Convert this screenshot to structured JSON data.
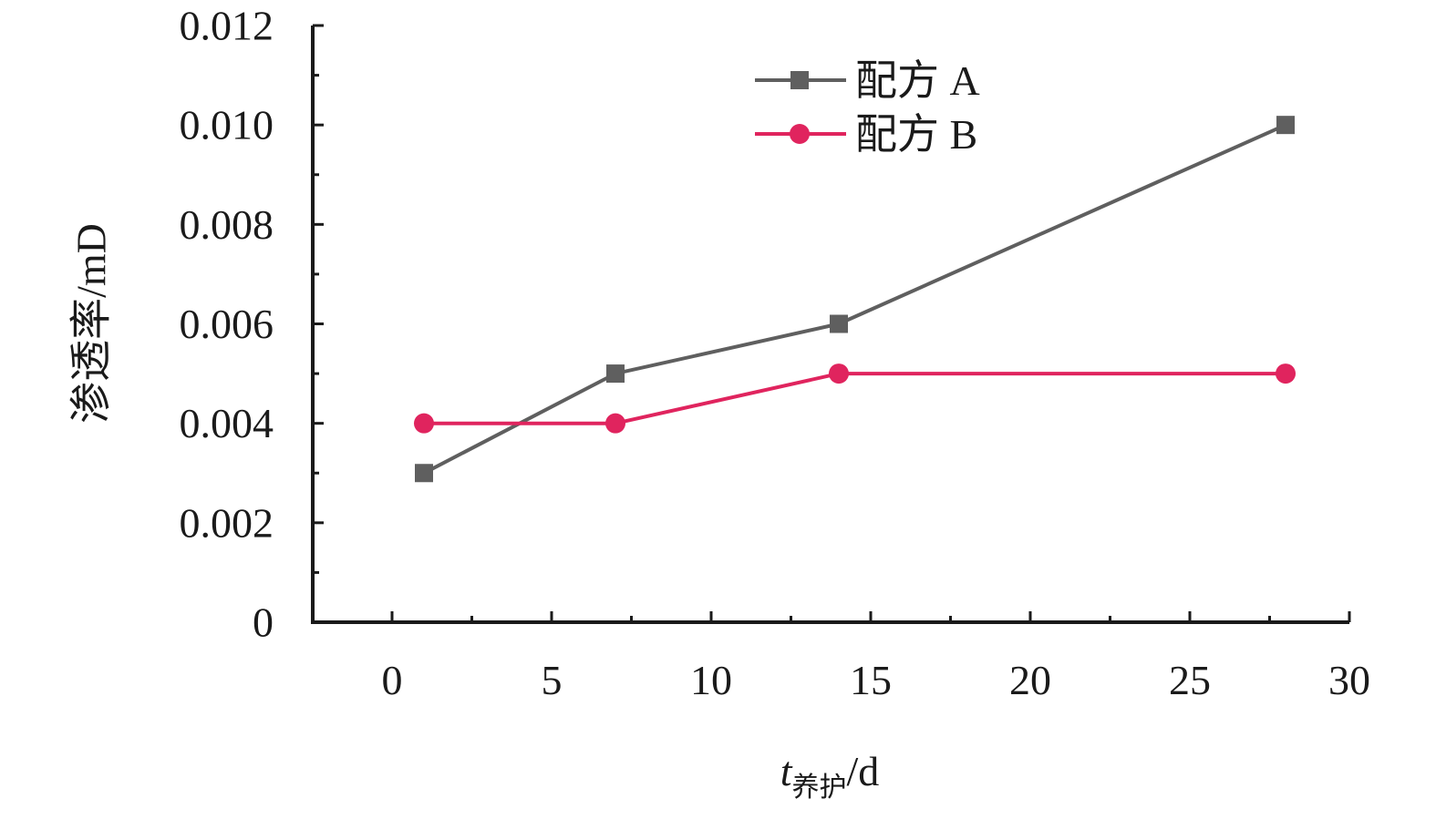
{
  "chart_data": {
    "type": "line",
    "title": "",
    "xlabel": {
      "italic": "t",
      "subscript": "养护",
      "suffix": "/d"
    },
    "ylabel": "渗透率/mD",
    "xlim": [
      0,
      30
    ],
    "ylim": [
      0,
      0.012
    ],
    "x_ticks": [
      "0",
      "5",
      "10",
      "15",
      "20",
      "25",
      "30"
    ],
    "y_ticks": [
      "0",
      "0.002",
      "0.004",
      "0.006",
      "0.008",
      "0.010",
      "0.012"
    ],
    "grid": false,
    "legend_position": "top-center",
    "series": [
      {
        "name": "配方 A",
        "color": "#5f5f5f",
        "marker": "square",
        "x": [
          1,
          7,
          14,
          28
        ],
        "values": [
          0.003,
          0.005,
          0.006,
          0.01
        ]
      },
      {
        "name": "配方 B",
        "color": "#e0245e",
        "marker": "circle",
        "x": [
          1,
          7,
          14,
          28
        ],
        "values": [
          0.004,
          0.004,
          0.005,
          0.005
        ]
      }
    ]
  }
}
